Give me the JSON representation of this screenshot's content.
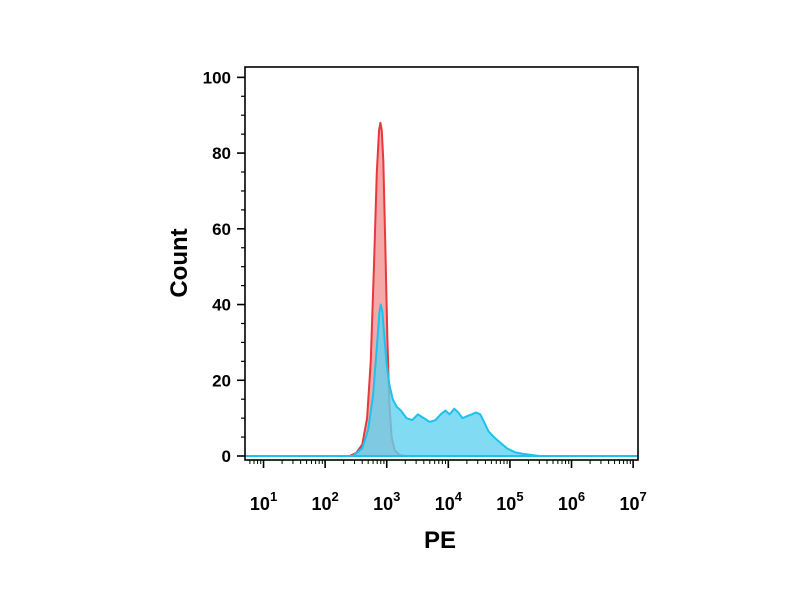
{
  "chart_data": {
    "type": "area",
    "xlabel": "PE",
    "ylabel": "Count",
    "xscale": "log",
    "xlim": [
      5,
      12000000
    ],
    "ylim": [
      0,
      103
    ],
    "grid": false,
    "legend": "none",
    "x_ticks": [
      {
        "base": "10",
        "exp": "1",
        "value": 10
      },
      {
        "base": "10",
        "exp": "2",
        "value": 100
      },
      {
        "base": "10",
        "exp": "3",
        "value": 1000
      },
      {
        "base": "10",
        "exp": "4",
        "value": 10000
      },
      {
        "base": "10",
        "exp": "5",
        "value": 100000
      },
      {
        "base": "10",
        "exp": "6",
        "value": 1000000
      },
      {
        "base": "10",
        "exp": "7",
        "value": 10000000
      }
    ],
    "y_ticks": [
      {
        "label": "0",
        "value": 0
      },
      {
        "label": "20",
        "value": 20
      },
      {
        "label": "40",
        "value": 40
      },
      {
        "label": "60",
        "value": 60
      },
      {
        "label": "80",
        "value": 80
      },
      {
        "label": "100",
        "value": 100
      }
    ],
    "series": [
      {
        "fill": "#f4a3a3",
        "stroke": "#e8383d",
        "points": [
          [
            5,
            0
          ],
          [
            250,
            0
          ],
          [
            320,
            0.8
          ],
          [
            400,
            3
          ],
          [
            480,
            10
          ],
          [
            550,
            25
          ],
          [
            620,
            50
          ],
          [
            690,
            75
          ],
          [
            750,
            86
          ],
          [
            790,
            88
          ],
          [
            830,
            86
          ],
          [
            880,
            78
          ],
          [
            950,
            55
          ],
          [
            1020,
            32
          ],
          [
            1100,
            14
          ],
          [
            1200,
            5
          ],
          [
            1350,
            1.5
          ],
          [
            1600,
            0.3
          ],
          [
            2000,
            0
          ],
          [
            12000000,
            0
          ]
        ]
      },
      {
        "fill": "#62d2ef",
        "stroke": "#1ec1ec",
        "points": [
          [
            5,
            0
          ],
          [
            280,
            0
          ],
          [
            400,
            2
          ],
          [
            500,
            7
          ],
          [
            600,
            16
          ],
          [
            700,
            30
          ],
          [
            760,
            38
          ],
          [
            800,
            40
          ],
          [
            850,
            38
          ],
          [
            920,
            31
          ],
          [
            1000,
            24
          ],
          [
            1100,
            19
          ],
          [
            1250,
            15
          ],
          [
            1450,
            13
          ],
          [
            1700,
            12
          ],
          [
            2100,
            10
          ],
          [
            2600,
            9.5
          ],
          [
            3200,
            11
          ],
          [
            4000,
            10
          ],
          [
            5000,
            9
          ],
          [
            6200,
            9.5
          ],
          [
            7500,
            11
          ],
          [
            9000,
            12
          ],
          [
            10500,
            11
          ],
          [
            12500,
            12.5
          ],
          [
            14500,
            11.5
          ],
          [
            17000,
            10
          ],
          [
            20000,
            10.5
          ],
          [
            24000,
            11
          ],
          [
            28000,
            11.5
          ],
          [
            33000,
            11
          ],
          [
            38000,
            9
          ],
          [
            45000,
            6.5
          ],
          [
            55000,
            5
          ],
          [
            70000,
            3.5
          ],
          [
            90000,
            2
          ],
          [
            120000,
            1
          ],
          [
            160000,
            0.6
          ],
          [
            220000,
            0.3
          ],
          [
            300000,
            0
          ],
          [
            12000000,
            0
          ]
        ]
      }
    ]
  }
}
